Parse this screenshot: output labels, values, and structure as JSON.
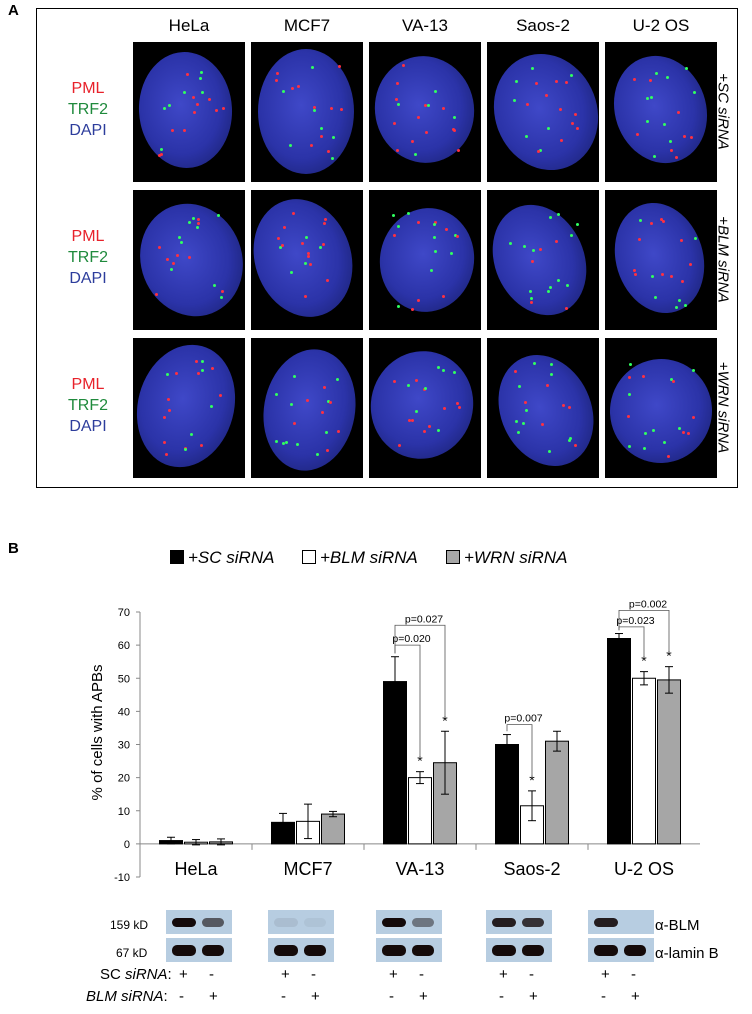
{
  "panel_a": {
    "letter": "A",
    "columns": [
      "HeLa",
      "MCF7",
      "VA-13",
      "Saos-2",
      "U-2 OS"
    ],
    "stain_labels": [
      {
        "text": "PML",
        "color": "#e8212a"
      },
      {
        "text": "TRF2",
        "color": "#1f8a3c"
      },
      {
        "text": "DAPI",
        "color": "#2d3d9c"
      }
    ],
    "rows": [
      {
        "prefix": "+",
        "name": "SC siRNA"
      },
      {
        "prefix": "+",
        "name": "BLM siRNA"
      },
      {
        "prefix": "+",
        "name": "WRN siRNA"
      }
    ]
  },
  "panel_b": {
    "letter": "B",
    "legend": [
      {
        "label": "+SC siRNA",
        "color": "#000000"
      },
      {
        "label": "+BLM siRNA",
        "color": "#ffffff"
      },
      {
        "label": "+WRN siRNA",
        "color": "#a6a6a6"
      }
    ],
    "blot_labels": {
      "kd_159": "159 kD",
      "kd_67": "67 kD",
      "alpha_blm": "α-BLM",
      "alpha_lamin": "α-lamin B",
      "sc_row": "SC siRNA:",
      "blm_row": "BLM siRNA:",
      "sc_row_plain": "SC ",
      "sc_row_italic": "siRNA",
      "blm_row_italic": "BLM siRNA",
      "colon": ":",
      "plus": "+",
      "minus": "-"
    }
  },
  "chart_data": {
    "type": "bar",
    "categories": [
      "HeLa",
      "MCF7",
      "VA-13",
      "Saos-2",
      "U-2 OS"
    ],
    "ylabel": "% of cells with APBs",
    "ylim": [
      -10,
      70
    ],
    "yticks": [
      -10,
      0,
      10,
      20,
      30,
      40,
      50,
      60,
      70
    ],
    "series": [
      {
        "name": "+SC siRNA",
        "color": "#000000",
        "values": [
          1.0,
          6.5,
          49,
          30,
          62
        ],
        "errors": [
          1.0,
          2.7,
          7.5,
          3.0,
          1.5
        ]
      },
      {
        "name": "+BLM siRNA",
        "color": "#ffffff",
        "values": [
          0.5,
          6.8,
          20,
          11.5,
          50
        ],
        "errors": [
          0.8,
          5.2,
          1.8,
          4.5,
          2.0
        ]
      },
      {
        "name": "+WRN siRNA",
        "color": "#a6a6a6",
        "values": [
          0.6,
          9.0,
          24.5,
          31,
          49.5
        ],
        "errors": [
          0.9,
          0.8,
          9.5,
          3.0,
          4.0
        ]
      }
    ],
    "significance_stars": [
      {
        "category": "VA-13",
        "series": "+BLM siRNA",
        "text": "*"
      },
      {
        "category": "VA-13",
        "series": "+WRN siRNA",
        "text": "*"
      },
      {
        "category": "Saos-2",
        "series": "+BLM siRNA",
        "text": "*"
      },
      {
        "category": "U-2 OS",
        "series": "+BLM siRNA",
        "text": "*"
      },
      {
        "category": "U-2 OS",
        "series": "+WRN siRNA",
        "text": "*"
      }
    ],
    "p_values": [
      {
        "category": "VA-13",
        "from": "+SC siRNA",
        "to": "+WRN siRNA",
        "text": "p=0.027",
        "level": 66
      },
      {
        "category": "VA-13",
        "from": "+SC siRNA",
        "to": "+BLM siRNA",
        "text": "p=0.020",
        "level": 60
      },
      {
        "category": "Saos-2",
        "from": "+SC siRNA",
        "to": "+BLM siRNA",
        "text": "p=0.007",
        "level": 36
      },
      {
        "category": "U-2 OS",
        "from": "+SC siRNA",
        "to": "+WRN siRNA",
        "text": "p=0.002",
        "level": 70.5
      },
      {
        "category": "U-2 OS",
        "from": "+SC siRNA",
        "to": "+BLM siRNA",
        "text": "p=0.023",
        "level": 65.5
      }
    ]
  }
}
